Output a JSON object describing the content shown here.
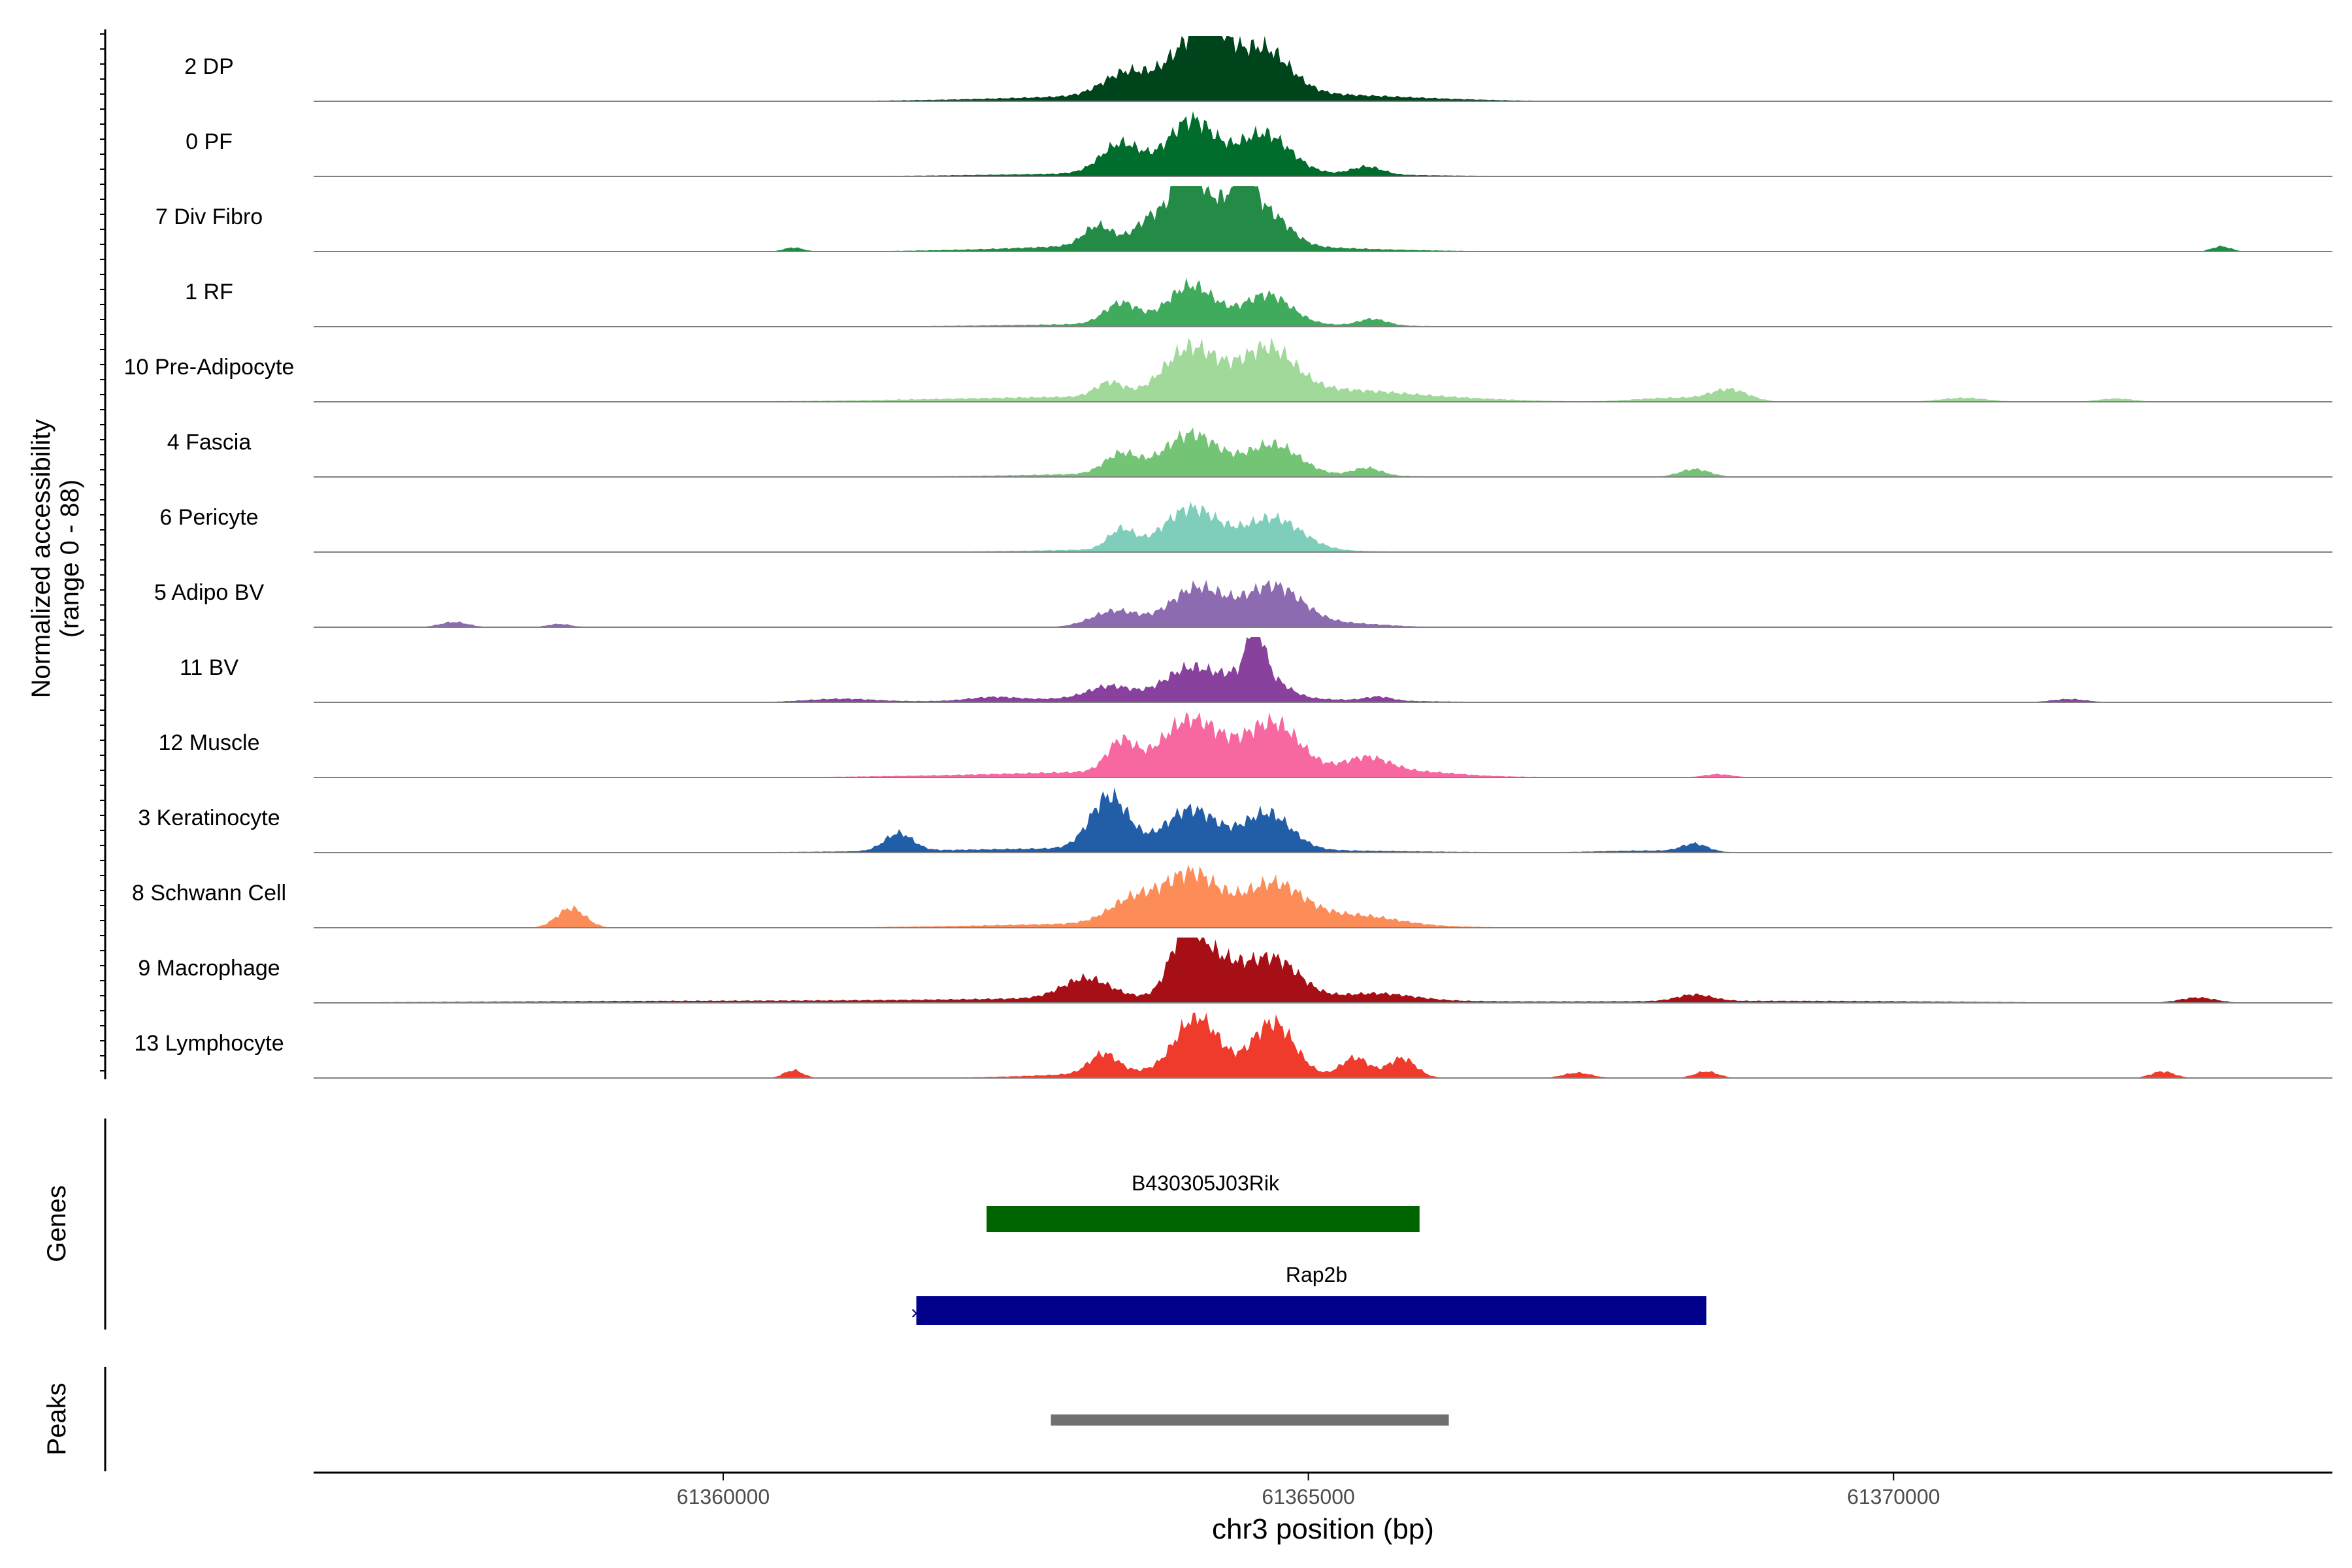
{
  "chart_data": {
    "type": "area",
    "title": "",
    "ylabel_line1": "Normalized accessibility",
    "ylabel_line2": "(range 0 - 88)",
    "y_range": [
      0,
      88
    ],
    "xlabel": "chr3 position (bp)",
    "xlim": [
      61356500,
      61373750
    ],
    "x_ticks": [
      61360000,
      61365000,
      61370000
    ],
    "x_tick_labels": [
      "61360000",
      "61365000",
      "61370000"
    ],
    "tracks": [
      {
        "name": "2 DP",
        "color": "#00441b",
        "peaks": [
          [
            61363450,
            200,
            0.35
          ],
          [
            61364000,
            200,
            0.75
          ],
          [
            61364200,
            130,
            0.55
          ],
          [
            61364600,
            230,
            0.7
          ],
          [
            61363900,
            1200,
            0.1
          ],
          [
            61365200,
            800,
            0.05
          ]
        ]
      },
      {
        "name": "0 PF",
        "color": "#006d2c",
        "peaks": [
          [
            61363400,
            170,
            0.45
          ],
          [
            61364000,
            200,
            0.8
          ],
          [
            61364620,
            220,
            0.6
          ],
          [
            61365500,
            130,
            0.12
          ],
          [
            61364000,
            1300,
            0.06
          ]
        ]
      },
      {
        "name": "7 Div Fibro",
        "color": "#238b45",
        "peaks": [
          [
            61363200,
            120,
            0.3
          ],
          [
            61363700,
            160,
            0.45
          ],
          [
            61363950,
            90,
            0.95
          ],
          [
            61364150,
            180,
            0.7
          ],
          [
            61364450,
            90,
            0.8
          ],
          [
            61364650,
            180,
            0.5
          ],
          [
            61363900,
            1100,
            0.12
          ],
          [
            61360600,
            80,
            0.06
          ],
          [
            61372800,
            80,
            0.08
          ]
        ]
      },
      {
        "name": "1 RF",
        "color": "#41ab5d",
        "peaks": [
          [
            61363400,
            140,
            0.32
          ],
          [
            61364000,
            200,
            0.58
          ],
          [
            61364650,
            200,
            0.45
          ],
          [
            61365550,
            120,
            0.1
          ],
          [
            61363900,
            1200,
            0.05
          ]
        ]
      },
      {
        "name": "10 Pre-Adipocyte",
        "color": "#a1d99b",
        "peaks": [
          [
            61363300,
            120,
            0.22
          ],
          [
            61364000,
            230,
            0.75
          ],
          [
            61364650,
            230,
            0.7
          ],
          [
            61365200,
            500,
            0.12
          ],
          [
            61363500,
            1500,
            0.08
          ],
          [
            61366000,
            600,
            0.05
          ],
          [
            61368600,
            160,
            0.18
          ],
          [
            61368100,
            300,
            0.06
          ],
          [
            61370600,
            200,
            0.06
          ],
          [
            61371900,
            150,
            0.05
          ]
        ]
      },
      {
        "name": "4 Fascia",
        "color": "#74c476",
        "peaks": [
          [
            61363400,
            140,
            0.3
          ],
          [
            61364000,
            230,
            0.6
          ],
          [
            61364700,
            220,
            0.45
          ],
          [
            61365500,
            120,
            0.12
          ],
          [
            61363900,
            1100,
            0.06
          ],
          [
            61368300,
            130,
            0.12
          ]
        ]
      },
      {
        "name": "6 Pericyte",
        "color": "#7fcdbb",
        "peaks": [
          [
            61363400,
            110,
            0.3
          ],
          [
            61364000,
            230,
            0.62
          ],
          [
            61364700,
            240,
            0.48
          ],
          [
            61363900,
            1000,
            0.05
          ]
        ]
      },
      {
        "name": "5 Adipo BV",
        "color": "#8c6bb1",
        "peaks": [
          [
            61363350,
            200,
            0.25
          ],
          [
            61364050,
            230,
            0.6
          ],
          [
            61364700,
            240,
            0.62
          ],
          [
            61365300,
            350,
            0.06
          ],
          [
            61357700,
            120,
            0.08
          ],
          [
            61358600,
            100,
            0.05
          ]
        ]
      },
      {
        "name": "11 BV",
        "color": "#88419d",
        "peaks": [
          [
            61363300,
            180,
            0.18
          ],
          [
            61364000,
            220,
            0.45
          ],
          [
            61364550,
            60,
            0.9
          ],
          [
            61364550,
            200,
            0.45
          ],
          [
            61363900,
            1200,
            0.08
          ],
          [
            61365600,
            110,
            0.06
          ],
          [
            61362300,
            200,
            0.05
          ],
          [
            61361000,
            300,
            0.05
          ],
          [
            61371500,
            150,
            0.05
          ]
        ]
      },
      {
        "name": "12 Muscle",
        "color": "#f768a1",
        "peaks": [
          [
            61363400,
            120,
            0.45
          ],
          [
            61364000,
            250,
            0.8
          ],
          [
            61364700,
            230,
            0.75
          ],
          [
            61365500,
            200,
            0.25
          ],
          [
            61363900,
            1400,
            0.1
          ],
          [
            61366000,
            300,
            0.05
          ],
          [
            61368500,
            120,
            0.05
          ]
        ]
      },
      {
        "name": "3 Keratinocyte",
        "color": "#225ea8",
        "peaks": [
          [
            61363300,
            160,
            0.8
          ],
          [
            61364000,
            220,
            0.6
          ],
          [
            61364650,
            200,
            0.55
          ],
          [
            61361500,
            120,
            0.27
          ],
          [
            61363500,
            1500,
            0.07
          ],
          [
            61368300,
            110,
            0.12
          ],
          [
            61367900,
            400,
            0.03
          ]
        ]
      },
      {
        "name": "8 Schwann Cell",
        "color": "#fc8d59",
        "peaks": [
          [
            61363500,
            200,
            0.35
          ],
          [
            61364000,
            230,
            0.75
          ],
          [
            61364700,
            250,
            0.6
          ],
          [
            61365400,
            350,
            0.15
          ],
          [
            61358700,
            120,
            0.3
          ],
          [
            61363900,
            1300,
            0.08
          ]
        ]
      },
      {
        "name": "9 Macrophage",
        "color": "#a50f15",
        "peaks": [
          [
            61363100,
            200,
            0.3
          ],
          [
            61363950,
            130,
            0.9
          ],
          [
            61364200,
            200,
            0.55
          ],
          [
            61364700,
            220,
            0.6
          ],
          [
            61365600,
            300,
            0.1
          ],
          [
            61363900,
            1500,
            0.08
          ],
          [
            61368300,
            150,
            0.1
          ],
          [
            61360000,
            2000,
            0.03
          ],
          [
            61369000,
            1500,
            0.03
          ],
          [
            61372600,
            150,
            0.08
          ]
        ]
      },
      {
        "name": "13 Lymphocyte",
        "color": "#ef3b2c",
        "peaks": [
          [
            61363250,
            120,
            0.3
          ],
          [
            61364050,
            180,
            0.85
          ],
          [
            61364700,
            180,
            0.8
          ],
          [
            61365400,
            120,
            0.3
          ],
          [
            61365800,
            120,
            0.3
          ],
          [
            61363800,
            800,
            0.1
          ],
          [
            61360600,
            80,
            0.12
          ],
          [
            61368400,
            100,
            0.1
          ],
          [
            61372300,
            100,
            0.1
          ],
          [
            61367300,
            120,
            0.08
          ]
        ]
      }
    ],
    "genes_label": "Genes",
    "genes": [
      {
        "name": "B430305J03Rik",
        "start": 61362250,
        "end": 61365950,
        "color": "#006400"
      },
      {
        "name": "Rap2b",
        "start": 61361650,
        "end": 61368400,
        "color": "#00008b"
      }
    ],
    "peaks_label": "Peaks",
    "peak_regions": [
      {
        "start": 61362800,
        "end": 61366200,
        "color": "#707070"
      }
    ]
  }
}
